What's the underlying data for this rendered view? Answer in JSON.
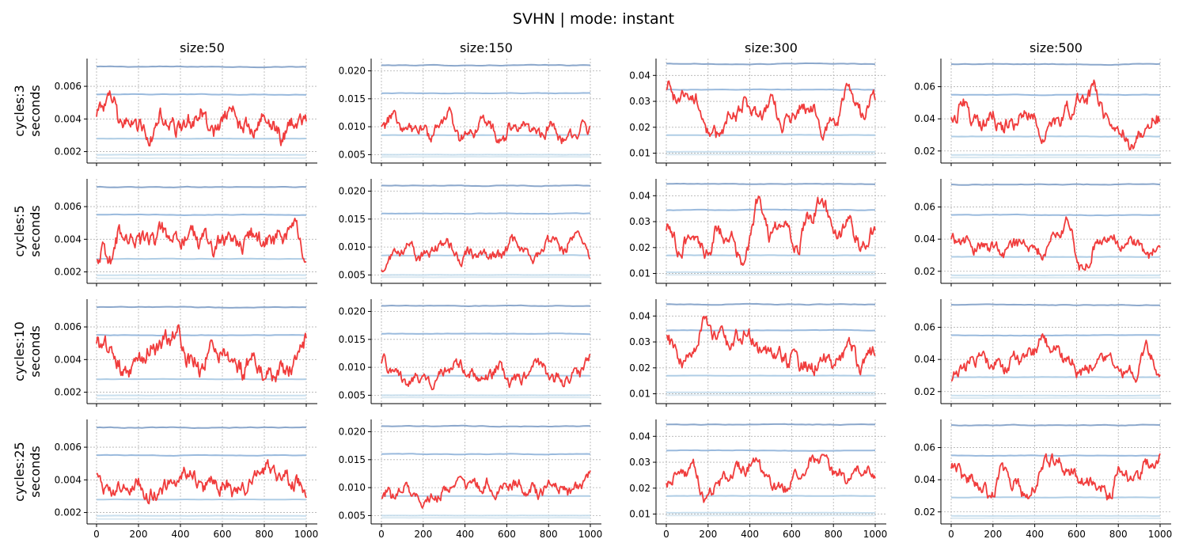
{
  "title": "SVHN | mode: instant",
  "colors": {
    "target": "#f03c3c",
    "ref": [
      "#7f9fc7",
      "#8fb3d9",
      "#a6c8e2",
      "#c3dcec",
      "#d6e6f0"
    ]
  },
  "chart_data": {
    "type": "line",
    "x_range": [
      0,
      1000
    ],
    "x_ticks": [
      0,
      200,
      400,
      600,
      800,
      1000
    ],
    "x_tick_labels": [
      "0",
      "200",
      "400",
      "600",
      "800",
      "1000"
    ],
    "col_titles": [
      "size:50",
      "size:150",
      "size:300",
      "size:500"
    ],
    "row_labels": [
      "cycles:3",
      "cycles:5",
      "cycles:10",
      "cycles:25"
    ],
    "row_ylabel": "seconds",
    "grid": true,
    "columns": [
      {
        "ylim": [
          0.0013,
          0.0077
        ],
        "ticks": [
          0.002,
          0.004,
          0.006
        ],
        "tick_labels": [
          "0.002",
          "0.004",
          "0.006"
        ],
        "ref_levels": [
          0.0072,
          0.0055,
          0.0028,
          0.0018,
          0.0016
        ],
        "rows": [
          {
            "red_mean": 0.0037,
            "red_amp": 0.0009,
            "red_anchors": [
              0.0044,
              0.0052,
              0.0036,
              0.0039,
              0.0029,
              0.0041,
              0.0033,
              0.0038,
              0.0043,
              0.0031,
              0.0045,
              0.0037,
              0.0033,
              0.004,
              0.003,
              0.0036,
              0.0038
            ]
          },
          {
            "red_mean": 0.0039,
            "red_amp": 0.0009,
            "red_anchors": [
              0.0032,
              0.0029,
              0.0045,
              0.0041,
              0.0038,
              0.0043,
              0.0037,
              0.0044,
              0.0039,
              0.0035,
              0.0041,
              0.0036,
              0.0042,
              0.0038,
              0.004,
              0.0052,
              0.0029
            ]
          },
          {
            "red_mean": 0.004,
            "red_amp": 0.001,
            "red_anchors": [
              0.0054,
              0.0046,
              0.003,
              0.0038,
              0.0044,
              0.0048,
              0.0056,
              0.0041,
              0.0036,
              0.0047,
              0.0039,
              0.0033,
              0.0043,
              0.0028,
              0.0032,
              0.0036,
              0.0054
            ]
          },
          {
            "red_mean": 0.0036,
            "red_amp": 0.0008,
            "red_anchors": [
              0.0045,
              0.0032,
              0.0037,
              0.004,
              0.003,
              0.0033,
              0.0039,
              0.0045,
              0.0036,
              0.004,
              0.0035,
              0.0032,
              0.004,
              0.0047,
              0.0043,
              0.0039,
              0.0032
            ]
          }
        ]
      },
      {
        "ylim": [
          0.0035,
          0.0222
        ],
        "ticks": [
          0.005,
          0.01,
          0.015,
          0.02
        ],
        "tick_labels": [
          "0.005",
          "0.010",
          "0.015",
          "0.020"
        ],
        "ref_levels": [
          0.021,
          0.016,
          0.0085,
          0.005,
          0.0046
        ],
        "rows": [
          {
            "red_mean": 0.0095,
            "red_amp": 0.002,
            "red_anchors": [
              0.0105,
              0.012,
              0.009,
              0.0095,
              0.0085,
              0.0125,
              0.008,
              0.009,
              0.011,
              0.0075,
              0.0095,
              0.01,
              0.0085,
              0.0105,
              0.008,
              0.009,
              0.01
            ]
          },
          {
            "red_mean": 0.0092,
            "red_amp": 0.0018,
            "red_anchors": [
              0.006,
              0.009,
              0.01,
              0.0085,
              0.0095,
              0.011,
              0.008,
              0.009,
              0.0085,
              0.008,
              0.011,
              0.009,
              0.0085,
              0.012,
              0.0095,
              0.013,
              0.008
            ]
          },
          {
            "red_mean": 0.0088,
            "red_amp": 0.0018,
            "red_anchors": [
              0.011,
              0.009,
              0.0075,
              0.0085,
              0.007,
              0.0095,
              0.0105,
              0.0085,
              0.008,
              0.01,
              0.007,
              0.0085,
              0.011,
              0.008,
              0.0075,
              0.009,
              0.0115
            ]
          },
          {
            "red_mean": 0.0098,
            "red_amp": 0.0018,
            "red_anchors": [
              0.009,
              0.0085,
              0.01,
              0.007,
              0.008,
              0.0095,
              0.011,
              0.01,
              0.0105,
              0.0095,
              0.011,
              0.01,
              0.009,
              0.0105,
              0.0095,
              0.01,
              0.012
            ]
          }
        ]
      },
      {
        "ylim": [
          0.0062,
          0.0465
        ],
        "ticks": [
          0.01,
          0.02,
          0.03,
          0.04
        ],
        "tick_labels": [
          "0.01",
          "0.02",
          "0.03",
          "0.04"
        ],
        "ref_levels": [
          0.0445,
          0.0345,
          0.017,
          0.0105,
          0.0095
        ],
        "rows": [
          {
            "red_mean": 0.024,
            "red_amp": 0.005,
            "red_anchors": [
              0.036,
              0.03,
              0.034,
              0.02,
              0.016,
              0.024,
              0.028,
              0.025,
              0.03,
              0.02,
              0.026,
              0.028,
              0.02,
              0.023,
              0.033,
              0.024,
              0.032
            ]
          },
          {
            "red_mean": 0.025,
            "red_amp": 0.005,
            "red_anchors": [
              0.029,
              0.02,
              0.024,
              0.018,
              0.026,
              0.022,
              0.014,
              0.038,
              0.025,
              0.028,
              0.02,
              0.032,
              0.038,
              0.026,
              0.03,
              0.021,
              0.028
            ]
          },
          {
            "red_mean": 0.0265,
            "red_amp": 0.005,
            "red_anchors": [
              0.034,
              0.022,
              0.026,
              0.038,
              0.032,
              0.03,
              0.034,
              0.028,
              0.026,
              0.024,
              0.022,
              0.02,
              0.024,
              0.022,
              0.028,
              0.02,
              0.028
            ]
          },
          {
            "red_mean": 0.025,
            "red_amp": 0.004,
            "red_anchors": [
              0.022,
              0.026,
              0.028,
              0.016,
              0.022,
              0.026,
              0.028,
              0.03,
              0.022,
              0.02,
              0.026,
              0.03,
              0.032,
              0.026,
              0.024,
              0.028,
              0.026
            ]
          }
        ]
      },
      {
        "ylim": [
          0.0125,
          0.0775
        ],
        "ticks": [
          0.02,
          0.04,
          0.06
        ],
        "tick_labels": [
          "0.02",
          "0.04",
          "0.06"
        ],
        "ref_levels": [
          0.074,
          0.055,
          0.029,
          0.0175,
          0.016
        ],
        "rows": [
          {
            "red_mean": 0.04,
            "red_amp": 0.008,
            "red_anchors": [
              0.042,
              0.048,
              0.036,
              0.042,
              0.034,
              0.04,
              0.046,
              0.028,
              0.038,
              0.046,
              0.052,
              0.058,
              0.038,
              0.03,
              0.024,
              0.038,
              0.042
            ]
          },
          {
            "red_mean": 0.036,
            "red_amp": 0.006,
            "red_anchors": [
              0.04,
              0.038,
              0.034,
              0.036,
              0.032,
              0.038,
              0.034,
              0.03,
              0.044,
              0.05,
              0.02,
              0.034,
              0.042,
              0.038,
              0.04,
              0.03,
              0.034
            ]
          },
          {
            "red_mean": 0.038,
            "red_amp": 0.007,
            "red_anchors": [
              0.028,
              0.034,
              0.042,
              0.038,
              0.036,
              0.04,
              0.044,
              0.052,
              0.048,
              0.038,
              0.032,
              0.038,
              0.042,
              0.034,
              0.03,
              0.048,
              0.03
            ]
          },
          {
            "red_mean": 0.04,
            "red_amp": 0.007,
            "red_anchors": [
              0.05,
              0.042,
              0.038,
              0.03,
              0.046,
              0.036,
              0.03,
              0.048,
              0.054,
              0.046,
              0.04,
              0.036,
              0.03,
              0.046,
              0.04,
              0.048,
              0.054
            ]
          }
        ]
      }
    ]
  }
}
